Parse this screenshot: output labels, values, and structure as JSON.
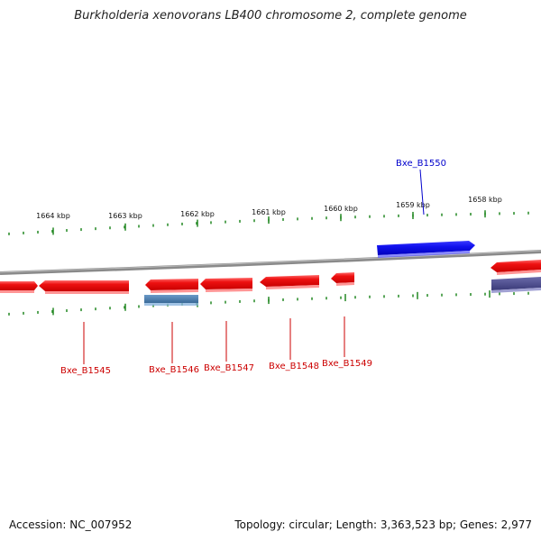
{
  "title": "Burkholderia xenovorans LB400 chromosome 2, complete genome",
  "footer": {
    "accession": "Accession: NC_007952",
    "stats": "Topology: circular; Length: 3,363,523 bp; Genes: 2,977"
  },
  "scale": {
    "ticks": [
      {
        "label": "1664 kbp"
      },
      {
        "label": "1663 kbp"
      },
      {
        "label": "1662 kbp"
      },
      {
        "label": "1661 kbp"
      },
      {
        "label": "1660 kbp"
      },
      {
        "label": "1659 kbp"
      },
      {
        "label": "1658 kbp"
      }
    ]
  },
  "genes": [
    {
      "label": "Bxe_B1545",
      "strand": "minus"
    },
    {
      "label": "Bxe_B1546",
      "strand": "minus"
    },
    {
      "label": "Bxe_B1547",
      "strand": "minus"
    },
    {
      "label": "Bxe_B1548",
      "strand": "minus"
    },
    {
      "label": "Bxe_B1549",
      "strand": "minus"
    },
    {
      "label": "Bxe_B1550",
      "strand": "plus"
    }
  ],
  "colors": {
    "minus_gene": "#ee1111",
    "plus_gene": "#1111ee",
    "secondary_feature": "#4477aa",
    "secondary_feature_dark": "#444488",
    "backbone": "#888888",
    "tick": "#228822",
    "minus_label": "#cc0000",
    "plus_label": "#0000cc"
  }
}
